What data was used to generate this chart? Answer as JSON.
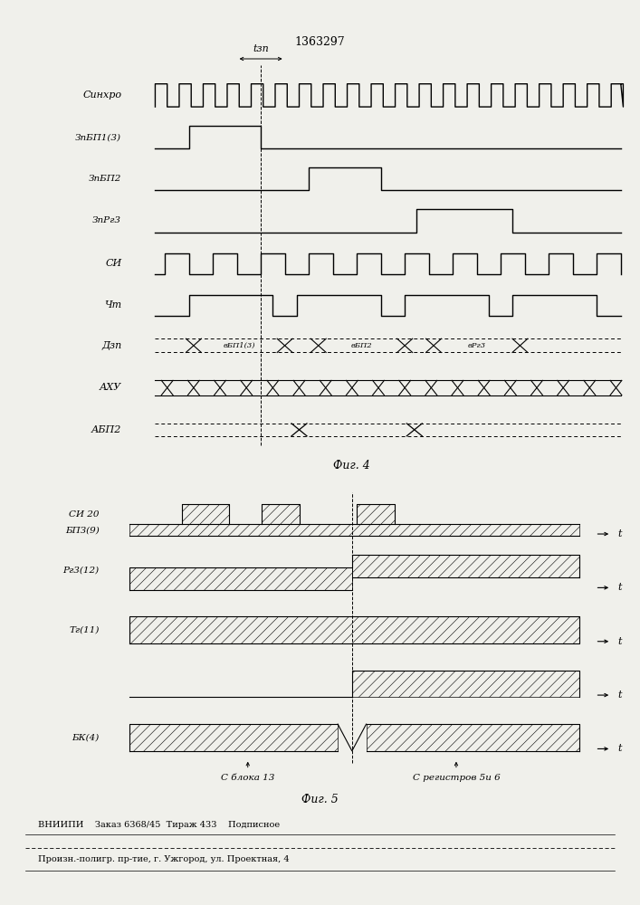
{
  "title": "1363297",
  "fig4_label": "Фиг. 4",
  "fig5_label": "Фиг. 5",
  "tzp_label": "tзп",
  "bg_color": "#f0f0eb",
  "label_bloka13": "С блока 13",
  "label_registrov": "С регистров 5и 6",
  "footer_line1": "ВНИИПИ    Заказ 6368/45  Тираж 433    Подписное",
  "footer_line2": "Произн.-полигр. пр-тие, г. Ужгород, ул. Проектная, 4"
}
